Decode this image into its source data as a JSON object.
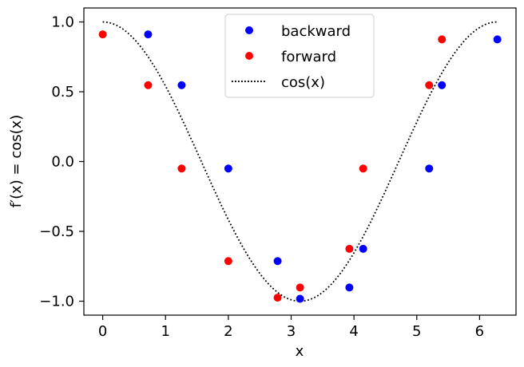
{
  "chart_data": {
    "type": "scatter",
    "xlabel": "x",
    "ylabel": "f′(x) = cos(x)",
    "xlim": [
      -0.3,
      6.58
    ],
    "ylim": [
      -1.1,
      1.1
    ],
    "x_ticks": [
      0,
      1,
      2,
      3,
      4,
      5,
      6
    ],
    "x_tick_labels": [
      "0",
      "1",
      "2",
      "3",
      "4",
      "5",
      "6"
    ],
    "y_ticks": [
      -1.0,
      -0.5,
      0.0,
      0.5,
      1.0
    ],
    "y_tick_labels": [
      "−1.0",
      "−0.5",
      "0.0",
      "0.5",
      "1.0"
    ],
    "grid": false,
    "legend_placement": "top-center",
    "series": [
      {
        "name": "backward",
        "kind": "points",
        "color": "#0000ff",
        "x": [
          0.7227,
          1.2566,
          2.0,
          2.7847,
          3.1416,
          3.927,
          4.1466,
          5.1974,
          5.4,
          6.2832
        ],
        "y": [
          0.911,
          0.547,
          -0.05,
          -0.713,
          -0.983,
          -0.902,
          -0.625,
          -0.05,
          0.547,
          0.875
        ]
      },
      {
        "name": "forward",
        "kind": "points",
        "color": "#ff0000",
        "x": [
          0.0,
          0.7227,
          1.2566,
          2.0,
          2.7847,
          3.1416,
          3.927,
          4.1466,
          5.1974,
          5.4
        ],
        "y": [
          0.911,
          0.547,
          -0.05,
          -0.713,
          -0.975,
          -0.902,
          -0.625,
          -0.05,
          0.547,
          0.875
        ]
      },
      {
        "name": "cos(x)",
        "kind": "line",
        "style": "dotted",
        "color": "#000000",
        "function": "cos",
        "domain": [
          0,
          6.2832
        ]
      }
    ]
  }
}
